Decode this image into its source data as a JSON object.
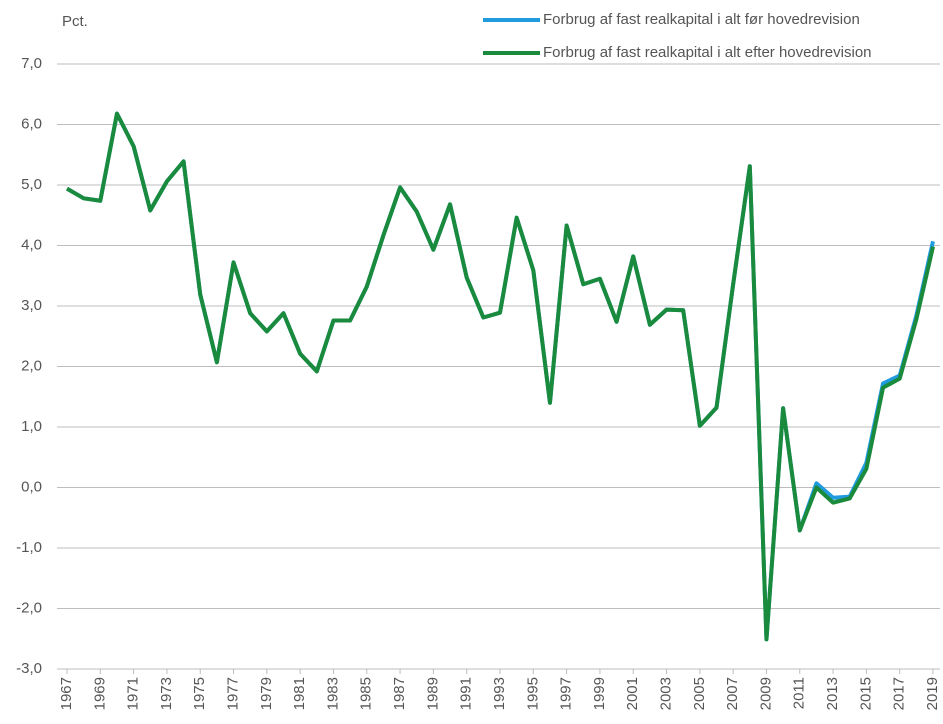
{
  "chart_data": {
    "type": "line",
    "ylabel": "Pct.",
    "x": [
      1967,
      1968,
      1969,
      1970,
      1971,
      1972,
      1973,
      1974,
      1975,
      1976,
      1977,
      1978,
      1979,
      1980,
      1981,
      1982,
      1983,
      1984,
      1985,
      1986,
      1987,
      1988,
      1989,
      1990,
      1991,
      1992,
      1993,
      1994,
      1995,
      1996,
      1997,
      1998,
      1999,
      2000,
      2001,
      2002,
      2003,
      2004,
      2005,
      2006,
      2007,
      2008,
      2009,
      2010,
      2011,
      2012,
      2013,
      2014,
      2015,
      2016,
      2017,
      2018,
      2019
    ],
    "series": [
      {
        "name": "Forbrug af fast realkapital i alt før hovedrevision",
        "color": "#1f9bde",
        "values": [
          4.94,
          4.78,
          4.74,
          6.18,
          5.64,
          4.58,
          5.06,
          5.39,
          3.19,
          2.07,
          3.72,
          2.88,
          2.58,
          2.88,
          2.21,
          1.92,
          2.76,
          2.76,
          3.32,
          4.17,
          4.96,
          4.56,
          3.93,
          4.68,
          3.47,
          2.81,
          2.89,
          4.46,
          3.59,
          1.4,
          4.33,
          3.36,
          3.45,
          2.74,
          3.82,
          2.69,
          2.94,
          2.93,
          1.02,
          1.32,
          3.36,
          5.31,
          -2.51,
          1.31,
          -0.71,
          0.07,
          -0.17,
          -0.15,
          0.41,
          1.72,
          1.85,
          2.84,
          4.07
        ]
      },
      {
        "name": "Forbrug af fast realkapital i alt efter hovedrevision",
        "color": "#1a8a3c",
        "values": [
          4.94,
          4.78,
          4.74,
          6.18,
          5.64,
          4.58,
          5.06,
          5.39,
          3.19,
          2.07,
          3.72,
          2.88,
          2.58,
          2.88,
          2.21,
          1.92,
          2.76,
          2.76,
          3.32,
          4.17,
          4.96,
          4.56,
          3.93,
          4.68,
          3.47,
          2.81,
          2.89,
          4.46,
          3.59,
          1.4,
          4.33,
          3.36,
          3.45,
          2.74,
          3.82,
          2.69,
          2.94,
          2.93,
          1.02,
          1.32,
          3.36,
          5.31,
          -2.51,
          1.31,
          -0.71,
          0.0,
          -0.25,
          -0.18,
          0.31,
          1.65,
          1.8,
          2.78,
          3.98
        ]
      }
    ],
    "xlim": [
      1967,
      2019
    ],
    "xticks": [
      1967,
      1969,
      1971,
      1973,
      1975,
      1977,
      1979,
      1981,
      1983,
      1985,
      1987,
      1989,
      1991,
      1993,
      1995,
      1997,
      1999,
      2001,
      2003,
      2005,
      2007,
      2009,
      2011,
      2013,
      2015,
      2017,
      2019
    ],
    "ylim": [
      -3,
      7
    ],
    "yticks": [
      {
        "value": -3,
        "label": "-3,0"
      },
      {
        "value": -2,
        "label": "-2,0"
      },
      {
        "value": -1,
        "label": "-1,0"
      },
      {
        "value": 0,
        "label": "0,0"
      },
      {
        "value": 1,
        "label": "1,0"
      },
      {
        "value": 2,
        "label": "2,0"
      },
      {
        "value": 3,
        "label": "3,0"
      },
      {
        "value": 4,
        "label": "4,0"
      },
      {
        "value": 5,
        "label": "5,0"
      },
      {
        "value": 6,
        "label": "6,0"
      },
      {
        "value": 7,
        "label": "7,0"
      }
    ],
    "grid": true
  }
}
